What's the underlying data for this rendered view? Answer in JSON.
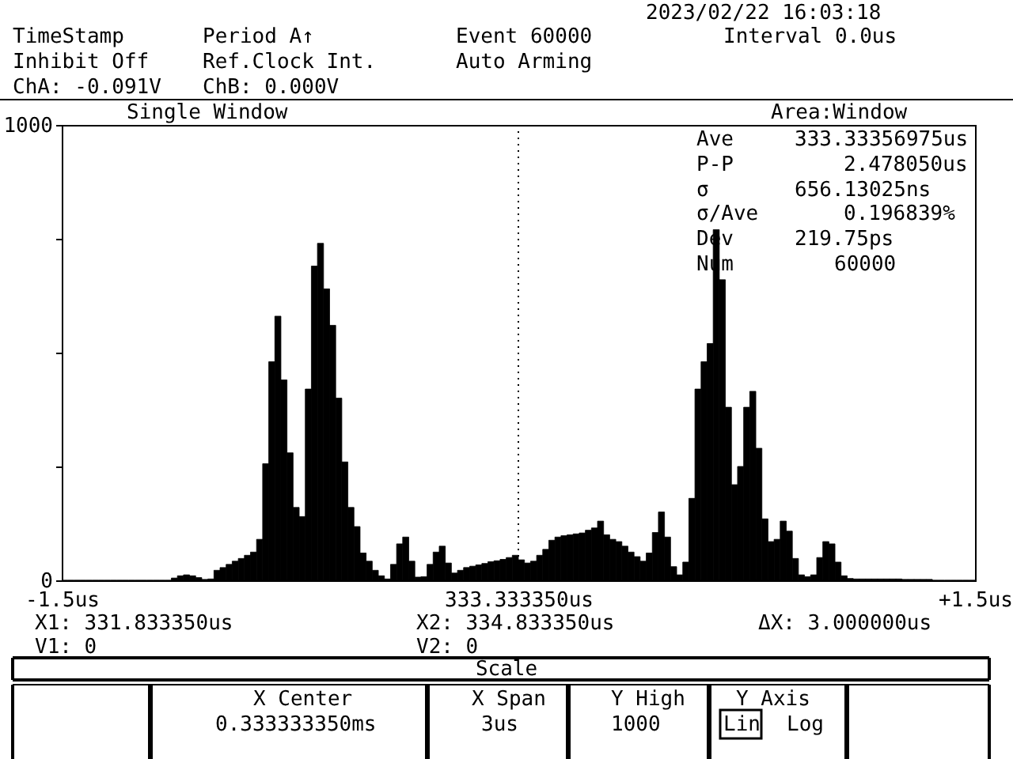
{
  "chart_data": {
    "type": "histogram",
    "xlabel": "333.333350us",
    "annotations": [
      "2023/02/22 16:03:18",
      "TimeStamp",
      "Period A↑",
      "Event 60000",
      "Interval 0.0us",
      "Inhibit Off",
      "Ref.Clock Int.",
      "Auto Arming",
      "ChA: -0.091V",
      "ChB:  0.000V",
      "Single Window",
      "Area:Window",
      "Ave",
      "333.33356975us",
      "P-P",
      "2.478050us",
      "σ",
      "656.13025ns",
      "σ/Ave",
      "0.196839%",
      "Dev",
      "219.75ps",
      "Num",
      "60000",
      "X1: 331.833350us",
      "X2: 334.833350us",
      "ΔX: 3.000000us",
      "V1: 0",
      "V2: 0",
      "Scale",
      "X Center",
      "0.333333350ms",
      "X Span",
      "3us",
      "Y High",
      "1000",
      "Y Axis",
      "Lin",
      "Log"
    ],
    "bins": [
      -1.5,
      -1.48,
      -1.46,
      -1.44,
      -1.42,
      -1.4,
      -1.38,
      -1.36,
      -1.34,
      -1.32,
      -1.3,
      -1.28,
      -1.26,
      -1.24,
      -1.22,
      -1.2,
      -1.18,
      -1.16,
      -1.14,
      -1.12,
      -1.1,
      -1.08,
      -1.06,
      -1.04,
      -1.02,
      -1,
      -0.98,
      -0.96,
      -0.94,
      -0.92,
      -0.9,
      -0.88,
      -0.86,
      -0.84,
      -0.82,
      -0.8,
      -0.78,
      -0.76,
      -0.74,
      -0.72,
      -0.7,
      -0.68,
      -0.66,
      -0.64,
      -0.62,
      -0.6,
      -0.58,
      -0.56,
      -0.54,
      -0.52,
      -0.5,
      -0.48,
      -0.46,
      -0.44,
      -0.42,
      -0.4,
      -0.38,
      -0.36,
      -0.34,
      -0.32,
      -0.3,
      -0.28,
      -0.26,
      -0.24,
      -0.22,
      -0.2,
      -0.18,
      -0.16,
      -0.14,
      -0.12,
      -0.1,
      -0.08,
      -0.06,
      -0.04,
      -0.02,
      0,
      0.02,
      0.04,
      0.06,
      0.08,
      0.1,
      0.12,
      0.14,
      0.16,
      0.18,
      0.2,
      0.22,
      0.24,
      0.26,
      0.28,
      0.3,
      0.32,
      0.34,
      0.36,
      0.38,
      0.4,
      0.42,
      0.44,
      0.46,
      0.48,
      0.5,
      0.52,
      0.54,
      0.56,
      0.58,
      0.6,
      0.62,
      0.64,
      0.66,
      0.68,
      0.7,
      0.72,
      0.74,
      0.76,
      0.78,
      0.8,
      0.82,
      0.84,
      0.86,
      0.88,
      0.9,
      0.92,
      0.94,
      0.96,
      0.98,
      1,
      1.02,
      1.04,
      1.06,
      1.08,
      1.1,
      1.12,
      1.14,
      1.16,
      1.18,
      1.2,
      1.22,
      1.24,
      1.26,
      1.28,
      1.3,
      1.32,
      1.34,
      1.36,
      1.38,
      1.4,
      1.42,
      1.44,
      1.46,
      1.48,
      1.5
    ],
    "values": [
      0,
      0,
      0,
      0,
      0,
      0,
      0,
      0,
      0,
      0,
      0,
      0,
      0,
      0,
      0,
      0,
      0,
      0,
      5,
      10,
      12,
      10,
      6,
      2,
      3,
      22,
      28,
      35,
      42,
      48,
      55,
      62,
      90,
      256,
      480,
      580,
      440,
      280,
      160,
      140,
      420,
      690,
      740,
      640,
      560,
      400,
      260,
      160,
      118,
      60,
      42,
      22,
      10,
      3,
      35,
      80,
      95,
      42,
      7,
      8,
      35,
      62,
      75,
      38,
      16,
      22,
      28,
      31,
      34,
      37,
      41,
      43,
      46,
      50,
      55,
      45,
      38,
      42,
      55,
      68,
      88,
      95,
      98,
      100,
      102,
      104,
      110,
      115,
      130,
      100,
      90,
      85,
      75,
      62,
      52,
      42,
      60,
      105,
      150,
      95,
      30,
      12,
      40,
      180,
      420,
      480,
      520,
      770,
      660,
      380,
      210,
      250,
      380,
      415,
      290,
      135,
      85,
      90,
      130,
      108,
      48,
      12,
      8,
      12,
      50,
      85,
      80,
      40,
      10,
      4,
      3,
      3,
      3,
      3,
      3,
      3,
      3,
      3,
      2,
      2,
      2,
      2,
      2,
      0,
      0,
      0,
      0,
      0,
      0,
      0
    ],
    "color": "#000000",
    "xlim": [
      -1.5,
      1.5
    ],
    "ylim": [
      0,
      1000
    ],
    "xticks": [
      {
        "value": -1.5,
        "label": "-1.5us"
      },
      {
        "value": 1.5,
        "label": "+1.5us"
      }
    ],
    "yticks": [
      0,
      {
        "value": 250,
        "label": null
      },
      {
        "value": 500,
        "label": null
      },
      {
        "value": 750,
        "label": null
      },
      1000
    ],
    "ref_lines": [
      {
        "axis": "x",
        "value": 0,
        "color": "#000000",
        "line_style": "dotted"
      }
    ]
  }
}
